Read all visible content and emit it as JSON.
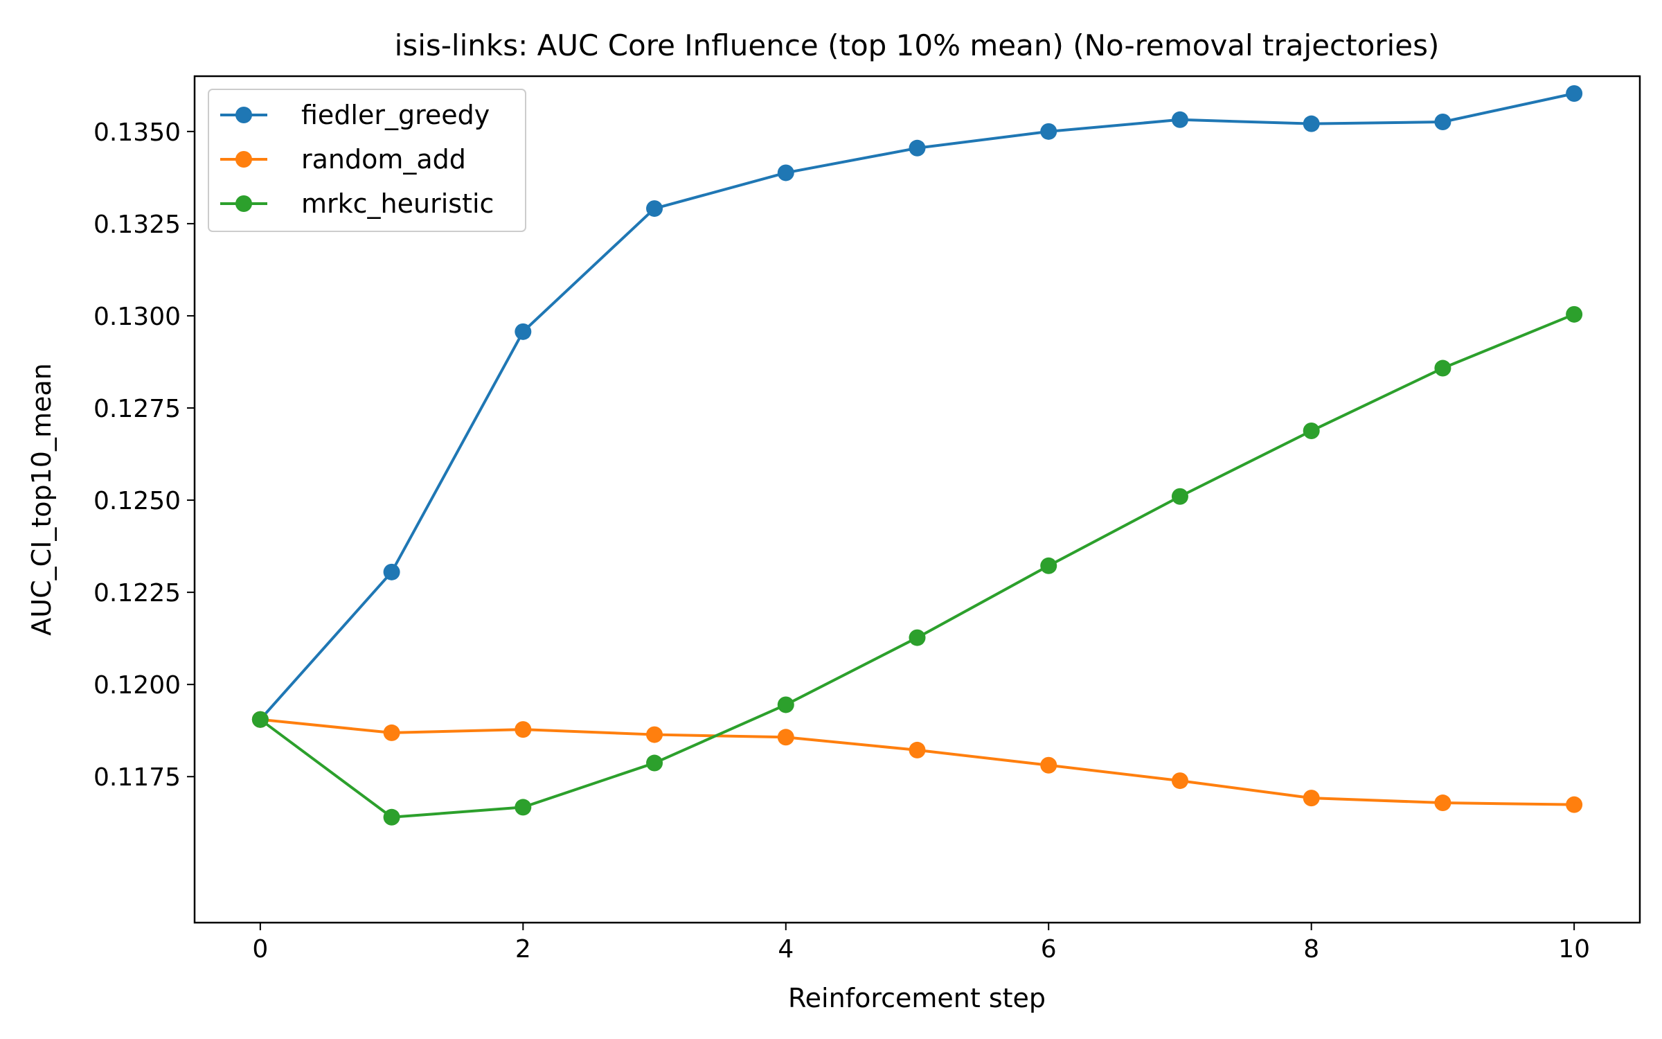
{
  "chart_data": {
    "type": "line",
    "title": "isis-links: AUC Core Influence (top 10% mean) (No-removal trajectories)",
    "xlabel": "Reinforcement step",
    "ylabel": "AUC_CI_top10_mean",
    "x": [
      0,
      1,
      2,
      3,
      4,
      5,
      6,
      7,
      8,
      9,
      10
    ],
    "xlim": [
      -0.5,
      10.5
    ],
    "ylim": [
      0.11354,
      0.1365
    ],
    "xticks": [
      0,
      2,
      4,
      6,
      8,
      10
    ],
    "xtick_labels": [
      "0",
      "2",
      "4",
      "6",
      "8",
      "10"
    ],
    "yticks": [
      0.1175,
      0.12,
      0.1225,
      0.125,
      0.1275,
      0.13,
      0.1325,
      0.135
    ],
    "ytick_labels": [
      "0.1175",
      "0.1200",
      "0.1225",
      "0.1250",
      "0.1275",
      "0.1300",
      "0.1325",
      "0.1350"
    ],
    "grid": false,
    "legend_position": "top-left",
    "series": [
      {
        "name": "fiedler_greedy",
        "color": "#1f77b4",
        "values": [
          0.11905,
          0.12305,
          0.12957,
          0.13291,
          0.13388,
          0.13455,
          0.135,
          0.13532,
          0.13521,
          0.13526,
          0.13603
        ]
      },
      {
        "name": "random_add",
        "color": "#ff7f0e",
        "values": [
          0.11905,
          0.11869,
          0.11878,
          0.11864,
          0.11857,
          0.11822,
          0.11781,
          0.11739,
          0.11692,
          0.11679,
          0.11674
        ]
      },
      {
        "name": "mrkc_heuristic",
        "color": "#2ca02c",
        "values": [
          0.11905,
          0.1164,
          0.11667,
          0.11787,
          0.11945,
          0.12127,
          0.12322,
          0.1251,
          0.12688,
          0.12858,
          0.13004
        ]
      }
    ]
  }
}
